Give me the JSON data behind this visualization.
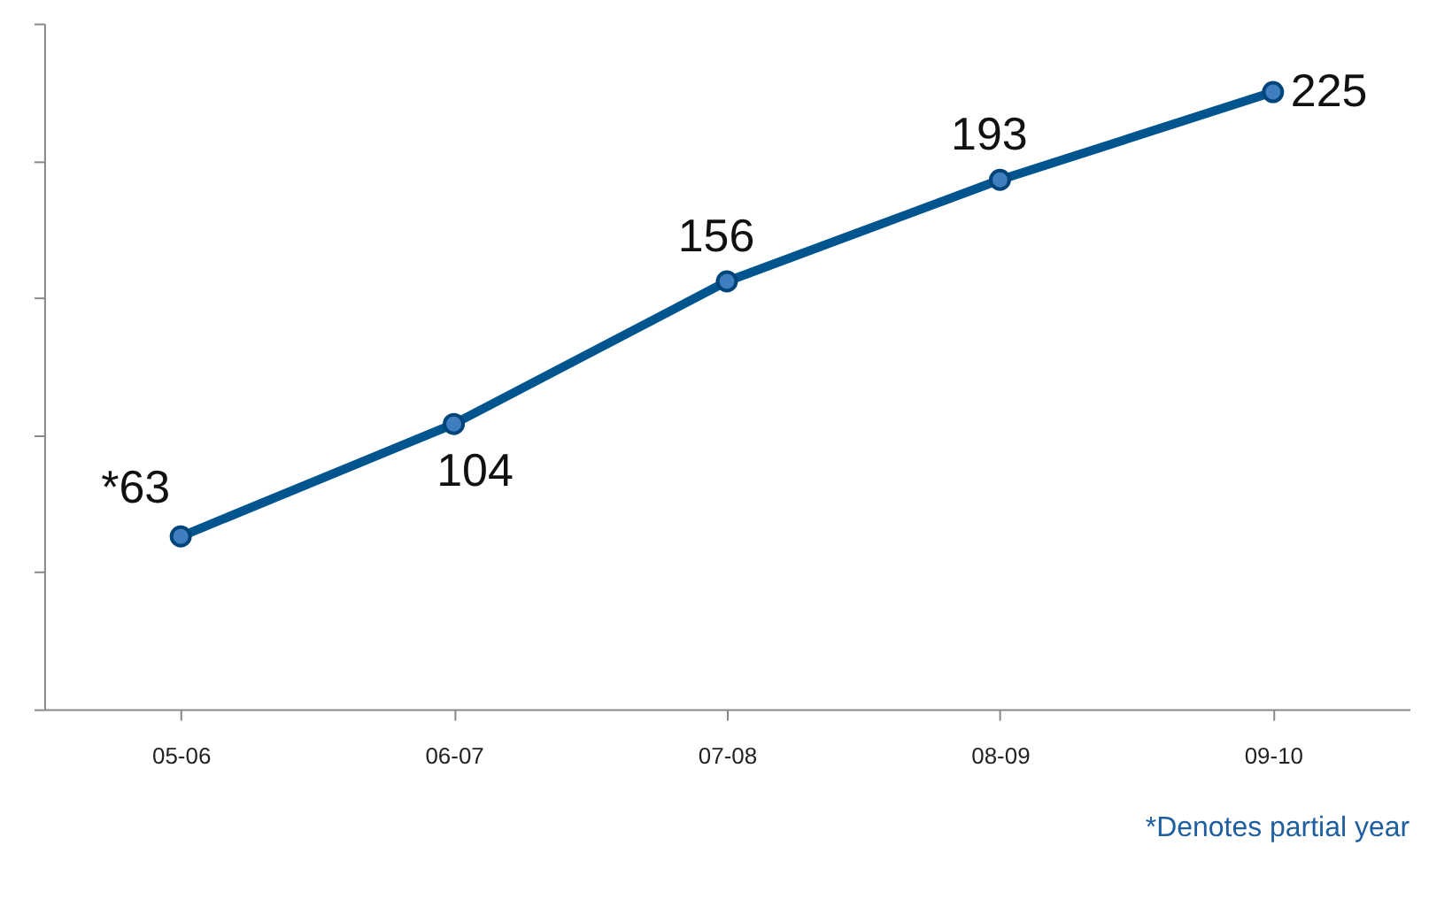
{
  "chart_data": {
    "type": "line",
    "categories": [
      "05-06",
      "06-07",
      "07-08",
      "08-09",
      "09-10"
    ],
    "series": [
      {
        "color": "#00558f",
        "values": [
          63,
          104,
          156,
          193,
          225
        ],
        "value_labels": [
          "*63",
          "104",
          "156",
          "193",
          "225"
        ]
      }
    ],
    "ylim": [
      0,
      250
    ],
    "yticks": [
      {
        "value": 0,
        "label": null
      },
      {
        "value": 50,
        "label": null
      },
      {
        "value": 100,
        "label": null
      },
      {
        "value": 150,
        "label": null
      },
      {
        "value": 200,
        "label": null
      },
      {
        "value": 250,
        "label": null
      }
    ],
    "tick_labels": "x",
    "grid": false,
    "marker": "circle",
    "line_style": "solid",
    "annotations": [
      "*Denotes partial year"
    ]
  }
}
